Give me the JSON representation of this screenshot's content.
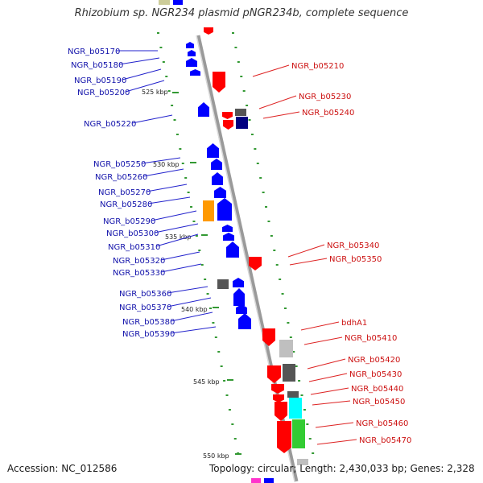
{
  "title": "Rhizobium sp. NGR234 plasmid pNGR234b, complete sequence",
  "footer": {
    "accession": "Accession: NC_012586",
    "topology": "Topology: circular; Length: 2,430,033 bp; Genes: 2,328"
  },
  "colors": {
    "forward": "#ff0000",
    "reverse": "#0000ff",
    "tick": "#339933",
    "backbone": "#9a9a9a",
    "pseudo_dark": "#555555",
    "pseudo_light": "#bfbfbf",
    "orange": "#ff9900",
    "cyan": "#00ffff",
    "green": "#33cc33",
    "navy": "#000080",
    "olive": "#cccc99",
    "magenta": "#ff33cc"
  },
  "scale_labels": [
    "525 kbp",
    "530 kbp",
    "535 kbp",
    "540 kbp",
    "545 kbp",
    "550 kbp"
  ],
  "genes_left": [
    "NGR_b05170",
    "NGR_b05180",
    "NGR_b05190",
    "NGR_b05200",
    "NGR_b05220",
    "NGR_b05250",
    "NGR_b05260",
    "NGR_b05270",
    "NGR_b05280",
    "NGR_b05290",
    "NGR_b05300",
    "NGR_b05310",
    "NGR_b05320",
    "NGR_b05330",
    "NGR_b05360",
    "NGR_b05370",
    "NGR_b05380",
    "NGR_b05390"
  ],
  "genes_right": [
    "NGR_b05210",
    "NGR_b05230",
    "NGR_b05240",
    "NGR_b05340",
    "NGR_b05350",
    "bdhA1",
    "NGR_b05410",
    "NGR_b05420",
    "NGR_b05430",
    "NGR_b05440",
    "NGR_b05450",
    "NGR_b05460",
    "NGR_b05470"
  ]
}
